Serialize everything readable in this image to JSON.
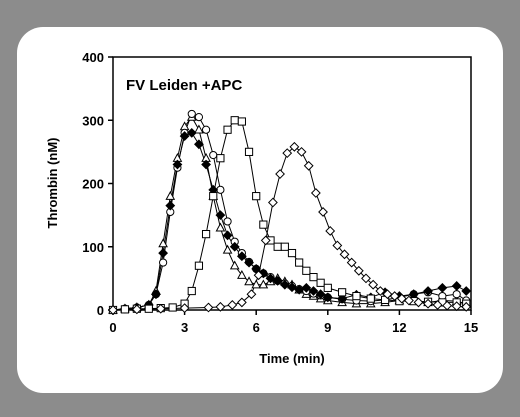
{
  "chart_data": {
    "type": "line",
    "title": "FV Leiden +APC",
    "xlabel": "Time (min)",
    "ylabel": "Thrombin (nM)",
    "xlim": [
      0,
      15
    ],
    "ylim": [
      0,
      400
    ],
    "xticks": [
      0,
      3,
      6,
      9,
      12,
      15
    ],
    "yticks": [
      0,
      100,
      200,
      300,
      400
    ],
    "grid": false,
    "legend": "none",
    "series": [
      {
        "marker": "triangle-open",
        "x": [
          0,
          0.5,
          1,
          1.5,
          1.8,
          2.1,
          2.4,
          2.7,
          3.0,
          3.3,
          3.6,
          3.9,
          4.2,
          4.5,
          4.8,
          5.1,
          5.4,
          5.7,
          6.0,
          6.3,
          6.6,
          6.9,
          7.2,
          7.5,
          7.8,
          8.1,
          8.4,
          8.7,
          9.0,
          9.6,
          10.2,
          10.8,
          11.4,
          12.0,
          12.6,
          13.2,
          13.8,
          14.4,
          14.8
        ],
        "y": [
          0,
          2,
          4,
          8,
          30,
          105,
          180,
          240,
          290,
          305,
          285,
          240,
          180,
          130,
          95,
          70,
          55,
          45,
          40,
          40,
          45,
          50,
          45,
          40,
          32,
          25,
          22,
          18,
          15,
          12,
          10,
          10,
          12,
          15,
          14,
          12,
          15,
          14,
          10
        ]
      },
      {
        "marker": "circle-open",
        "x": [
          0,
          0.5,
          1,
          1.5,
          1.8,
          2.1,
          2.4,
          2.7,
          3.0,
          3.3,
          3.6,
          3.9,
          4.2,
          4.5,
          4.8,
          5.1,
          5.4,
          5.7,
          6.0,
          6.3,
          6.6,
          6.9,
          7.2,
          7.5,
          7.8,
          8.1,
          8.4,
          8.7,
          9.0,
          9.6,
          10.2,
          10.8,
          11.4,
          12.0,
          12.6,
          13.2,
          13.8,
          14.4,
          14.8
        ],
        "y": [
          0,
          2,
          4,
          8,
          25,
          75,
          155,
          225,
          280,
          310,
          305,
          285,
          245,
          190,
          140,
          108,
          90,
          76,
          65,
          58,
          52,
          46,
          42,
          38,
          33,
          30,
          26,
          23,
          20,
          17,
          15,
          14,
          16,
          20,
          25,
          28,
          22,
          25,
          15
        ]
      },
      {
        "marker": "diamond-filled",
        "x": [
          0,
          0.5,
          1,
          1.5,
          1.8,
          2.1,
          2.4,
          2.7,
          3.0,
          3.3,
          3.6,
          3.9,
          4.2,
          4.5,
          4.8,
          5.1,
          5.4,
          5.7,
          6.0,
          6.3,
          6.6,
          6.9,
          7.2,
          7.5,
          7.8,
          8.1,
          8.4,
          8.7,
          9.0,
          9.6,
          10.2,
          10.8,
          11.4,
          12.0,
          12.6,
          13.2,
          13.8,
          14.4,
          14.8
        ],
        "y": [
          0,
          2,
          4,
          8,
          25,
          90,
          165,
          230,
          275,
          280,
          262,
          230,
          190,
          150,
          118,
          100,
          85,
          75,
          65,
          58,
          50,
          46,
          40,
          36,
          32,
          35,
          30,
          25,
          20,
          18,
          24,
          20,
          28,
          22,
          25,
          30,
          35,
          38,
          30
        ]
      },
      {
        "marker": "square-open",
        "x": [
          0,
          0.5,
          1,
          1.5,
          2.0,
          2.5,
          3.0,
          3.3,
          3.6,
          3.9,
          4.2,
          4.5,
          4.8,
          5.1,
          5.4,
          5.7,
          6.0,
          6.3,
          6.6,
          6.9,
          7.2,
          7.5,
          7.8,
          8.1,
          8.4,
          8.7,
          9.0,
          9.6,
          10.2,
          10.8,
          11.4,
          12.0,
          12.6,
          13.2,
          13.8,
          14.4,
          14.8
        ],
        "y": [
          0,
          1,
          2,
          2,
          3,
          4,
          10,
          30,
          70,
          120,
          180,
          240,
          285,
          300,
          298,
          250,
          180,
          135,
          110,
          100,
          100,
          90,
          75,
          62,
          52,
          43,
          35,
          28,
          22,
          18,
          16,
          14,
          14,
          13,
          12,
          12,
          10
        ]
      },
      {
        "marker": "diamond-open",
        "x": [
          0,
          1,
          2,
          3,
          4,
          4.5,
          5.0,
          5.4,
          5.8,
          6.1,
          6.4,
          6.7,
          7.0,
          7.3,
          7.6,
          7.9,
          8.2,
          8.5,
          8.8,
          9.1,
          9.4,
          9.7,
          10.0,
          10.3,
          10.6,
          10.9,
          11.2,
          11.5,
          11.8,
          12.1,
          12.4,
          12.8,
          13.2,
          13.6,
          14.0,
          14.4,
          14.8
        ],
        "y": [
          0,
          1,
          2,
          3,
          4,
          5,
          8,
          12,
          25,
          55,
          110,
          170,
          215,
          248,
          258,
          250,
          228,
          185,
          155,
          125,
          102,
          88,
          75,
          62,
          50,
          40,
          30,
          25,
          22,
          18,
          15,
          12,
          10,
          8,
          7,
          6,
          5
        ]
      }
    ]
  }
}
